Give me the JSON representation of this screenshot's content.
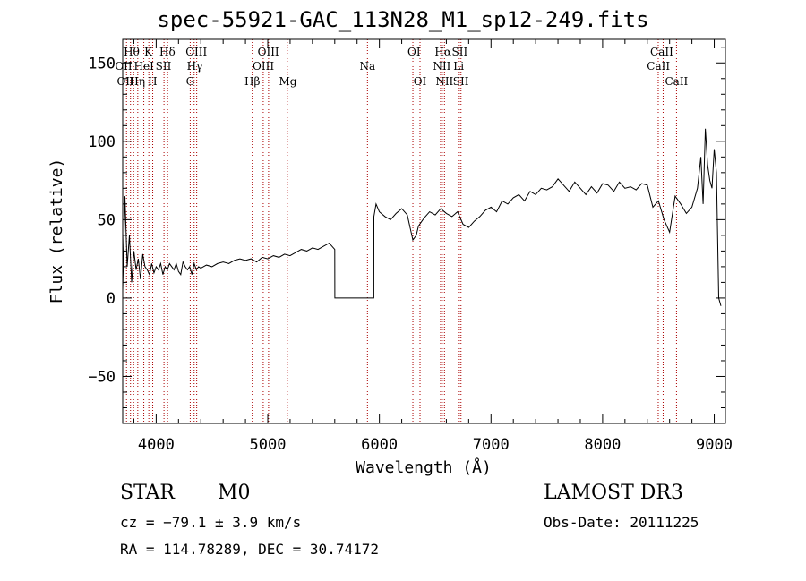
{
  "chart_data": {
    "type": "line",
    "title": "spec-55921-GAC_113N28_M1_sp12-249.fits",
    "xlabel": "Wavelength (Å)",
    "ylabel": "Flux (relative)",
    "xlim": [
      3700,
      9100
    ],
    "ylim": [
      -80,
      165
    ],
    "xticks": [
      4000,
      5000,
      6000,
      7000,
      8000,
      9000
    ],
    "yticks": [
      -50,
      0,
      50,
      100,
      150
    ],
    "grid": false,
    "line_color": "#000000",
    "marker_color": "#aa0000",
    "series": [
      {
        "x": [
          3700,
          3720,
          3740,
          3760,
          3780,
          3800,
          3820,
          3840,
          3860,
          3880,
          3900,
          3920,
          3940,
          3960,
          3980,
          4000,
          4020,
          4040,
          4060,
          4080,
          4100,
          4120,
          4140,
          4160,
          4180,
          4200,
          4220,
          4240,
          4260,
          4280,
          4300,
          4320,
          4340,
          4360,
          4380,
          4400,
          4450,
          4500,
          4550,
          4600,
          4650,
          4700,
          4750,
          4800,
          4850,
          4900,
          4950,
          5000,
          5050,
          5100,
          5150,
          5200,
          5250,
          5300,
          5350,
          5400,
          5450,
          5500,
          5550,
          5600,
          5601,
          5950,
          5951,
          5970,
          6000,
          6050,
          6100,
          6150,
          6200,
          6250,
          6300,
          6330,
          6350,
          6400,
          6450,
          6500,
          6550,
          6600,
          6650,
          6700,
          6750,
          6800,
          6850,
          6900,
          6950,
          7000,
          7050,
          7100,
          7150,
          7200,
          7250,
          7300,
          7350,
          7400,
          7450,
          7500,
          7550,
          7600,
          7650,
          7700,
          7750,
          7800,
          7850,
          7900,
          7950,
          8000,
          8050,
          8100,
          8150,
          8200,
          8250,
          8300,
          8350,
          8400,
          8450,
          8500,
          8550,
          8600,
          8650,
          8700,
          8750,
          8800,
          8850,
          8880,
          8900,
          8920,
          8940,
          8960,
          8980,
          9000,
          9020,
          9040,
          9060
        ],
        "y": [
          5,
          65,
          20,
          40,
          10,
          30,
          18,
          25,
          12,
          28,
          20,
          18,
          15,
          22,
          16,
          20,
          18,
          22,
          15,
          20,
          18,
          22,
          20,
          18,
          22,
          17,
          15,
          23,
          20,
          18,
          20,
          15,
          22,
          18,
          20,
          19,
          21,
          20,
          22,
          23,
          22,
          24,
          25,
          24,
          25,
          23,
          26,
          25,
          27,
          26,
          28,
          27,
          29,
          31,
          30,
          32,
          31,
          33,
          35,
          31,
          0,
          0,
          52,
          60,
          55,
          52,
          50,
          54,
          57,
          53,
          37,
          40,
          46,
          51,
          55,
          53,
          57,
          54,
          52,
          55,
          47,
          45,
          49,
          52,
          56,
          58,
          55,
          62,
          60,
          64,
          66,
          62,
          68,
          66,
          70,
          69,
          71,
          76,
          72,
          68,
          74,
          70,
          66,
          71,
          67,
          73,
          72,
          68,
          74,
          70,
          71,
          69,
          73,
          72,
          58,
          62,
          50,
          42,
          65,
          60,
          54,
          58,
          70,
          90,
          60,
          108,
          85,
          75,
          70,
          95,
          80,
          0,
          -5
        ]
      }
    ],
    "lines": [
      {
        "x": 3734,
        "labels": [
          "Hθ",
          "OII"
        ]
      },
      {
        "x": 3770,
        "labels": [
          "Hη"
        ]
      },
      {
        "x": 3798,
        "labels": [
          "Hθ"
        ]
      },
      {
        "x": 3835,
        "labels": [
          "Hη"
        ]
      },
      {
        "x": 3889,
        "labels": [
          "HeI"
        ]
      },
      {
        "x": 3934,
        "labels": [
          "K"
        ]
      },
      {
        "x": 3969,
        "labels": [
          "H"
        ]
      },
      {
        "x": 4070,
        "labels": [
          "SII"
        ]
      },
      {
        "x": 4102,
        "labels": [
          "Hδ"
        ]
      },
      {
        "x": 4305,
        "labels": [
          "G"
        ]
      },
      {
        "x": 4340,
        "labels": [
          "Hγ"
        ]
      },
      {
        "x": 4363,
        "labels": [
          "OIII"
        ]
      },
      {
        "x": 4861,
        "labels": [
          "Hβ"
        ]
      },
      {
        "x": 4959,
        "labels": [
          "OIII"
        ]
      },
      {
        "x": 5007,
        "labels": [
          "OIII"
        ]
      },
      {
        "x": 5175,
        "labels": [
          "Mg"
        ]
      },
      {
        "x": 5893,
        "labels": [
          "Na"
        ]
      },
      {
        "x": 6300,
        "labels": [
          "OI"
        ]
      },
      {
        "x": 6364,
        "labels": [
          "OI"
        ]
      },
      {
        "x": 6548,
        "labels": [
          "NII"
        ]
      },
      {
        "x": 6563,
        "labels": [
          "Hα"
        ]
      },
      {
        "x": 6583,
        "labels": [
          "NII"
        ]
      },
      {
        "x": 6708,
        "labels": [
          "Li"
        ]
      },
      {
        "x": 6716,
        "labels": [
          "SII"
        ]
      },
      {
        "x": 6731,
        "labels": [
          "SII"
        ]
      },
      {
        "x": 8498,
        "labels": [
          "CaII"
        ]
      },
      {
        "x": 8542,
        "labels": [
          "CaII"
        ]
      },
      {
        "x": 8662,
        "labels": [
          "CaII"
        ]
      }
    ],
    "line_label_rows": [
      [
        {
          "text": "Hθ",
          "x": 3780
        },
        {
          "text": "K",
          "x": 3930
        },
        {
          "text": "Hδ",
          "x": 4100
        },
        {
          "text": "OIII",
          "x": 4360
        },
        {
          "text": "OIII",
          "x": 5005
        },
        {
          "text": "OI",
          "x": 6310
        },
        {
          "text": "Hα",
          "x": 6570
        },
        {
          "text": "SII",
          "x": 6720
        },
        {
          "text": "CaII",
          "x": 8530
        }
      ],
      [
        {
          "text": "OII",
          "x": 3708
        },
        {
          "text": "HeI",
          "x": 3890
        },
        {
          "text": "SII",
          "x": 4065
        },
        {
          "text": "Hγ",
          "x": 4345
        },
        {
          "text": "OIII",
          "x": 4960
        },
        {
          "text": "Na",
          "x": 5893
        },
        {
          "text": "NII",
          "x": 6560
        },
        {
          "text": "Li",
          "x": 6710
        },
        {
          "text": "CaII",
          "x": 8500
        }
      ],
      [
        {
          "text": "OII",
          "x": 3725
        },
        {
          "text": "Hη",
          "x": 3830
        },
        {
          "text": "H",
          "x": 3968
        },
        {
          "text": "G",
          "x": 4305
        },
        {
          "text": "Hβ",
          "x": 4861
        },
        {
          "text": "Mg",
          "x": 5180
        },
        {
          "text": "OI",
          "x": 6364
        },
        {
          "text": "NII",
          "x": 6583
        },
        {
          "text": "SII",
          "x": 6730
        },
        {
          "text": "CaII",
          "x": 8662
        }
      ]
    ]
  },
  "info": {
    "class_label": "STAR",
    "subclass": "M0",
    "survey": "LAMOST DR3",
    "redshift_text": "cz = −79.1 ± 3.9 km/s",
    "obs_date": "Obs-Date: 20111225",
    "coords_text": "RA = 114.78289, DEC =  30.74172"
  }
}
